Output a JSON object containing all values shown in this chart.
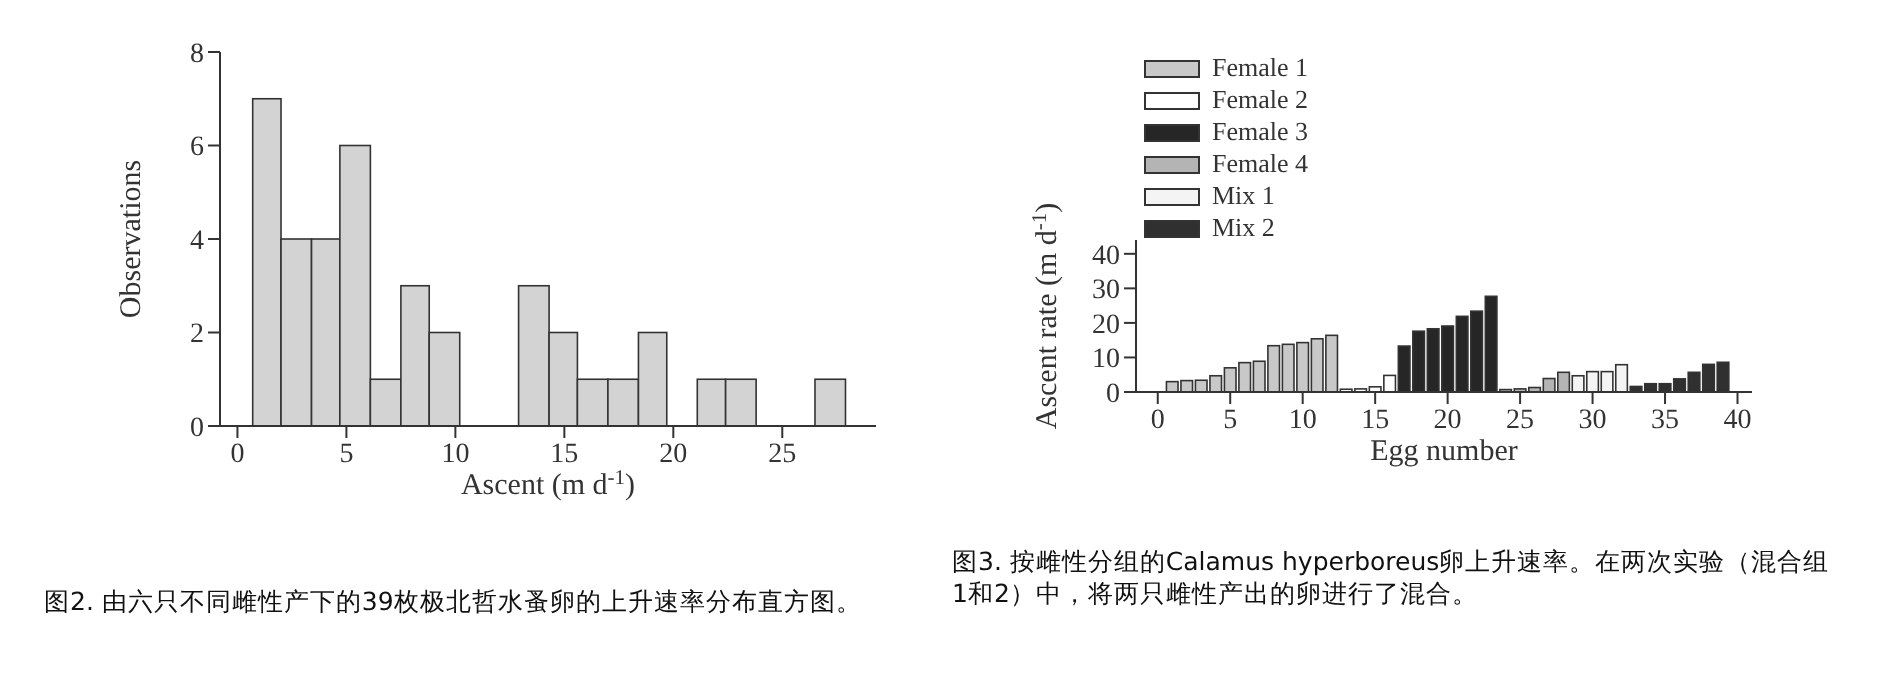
{
  "chart_data": [
    {
      "type": "histogram",
      "xlabel": "Ascent (m d$^{-1}$)",
      "ylabel": "Observations",
      "bins": [
        0.7,
        2.0,
        3.4,
        4.7,
        6.1,
        7.5,
        8.8,
        10.2,
        12.9,
        14.3,
        15.6,
        17.0,
        18.4,
        19.7,
        21.1,
        22.4,
        23.8,
        26.5,
        27.9
      ],
      "values": [
        7,
        4,
        4,
        6,
        1,
        3,
        2,
        0,
        3,
        2,
        1,
        1,
        2,
        0,
        1,
        1,
        0,
        1
      ],
      "color": "#d3d3d3",
      "xlim": [
        -0.8,
        29.3
      ],
      "xticks": [
        0,
        5,
        10,
        15,
        20,
        25
      ],
      "ylim": [
        0,
        8
      ],
      "yticks": [
        0,
        2,
        4,
        6,
        8
      ],
      "grid": false,
      "legend": false,
      "annotations": [
        "图2. 由六只不同雌性产下的39枚极北哲水蚤卵的上升速率分布直方图。"
      ]
    },
    {
      "type": "bar",
      "xlabel": "Egg number",
      "ylabel": "Ascent rate (m d$^{-1}$)",
      "xlim": [
        -1.5,
        41
      ],
      "xticks": [
        0,
        5,
        10,
        15,
        20,
        25,
        30,
        35,
        40
      ],
      "ylim": [
        0,
        44
      ],
      "yticks": [
        0,
        10,
        20,
        30,
        40
      ],
      "grid": false,
      "legend": "top left",
      "series": [
        {
          "name": "Female 1",
          "color": "#c8c8c8",
          "x": [
            1,
            2,
            3,
            4,
            5,
            6,
            7,
            8,
            9,
            10,
            11,
            12
          ],
          "values": [
            3.0,
            3.3,
            3.4,
            4.7,
            7.0,
            8.5,
            8.9,
            13.4,
            13.8,
            14.3,
            15.4,
            16.4
          ]
        },
        {
          "name": "Female 2",
          "color": "#ffffff",
          "x": [
            13,
            14,
            15,
            16
          ],
          "values": [
            0.8,
            0.9,
            1.5,
            4.8
          ]
        },
        {
          "name": "Female 3",
          "color": "#262626",
          "x": [
            17,
            18,
            19,
            20,
            21,
            22,
            23
          ],
          "values": [
            13.3,
            17.6,
            18.3,
            19.1,
            21.9,
            23.4,
            27.7
          ]
        },
        {
          "name": "Female 4",
          "color": "#b4b4b4",
          "x": [
            24,
            25,
            26,
            27,
            28
          ],
          "values": [
            0.7,
            0.9,
            1.3,
            3.9,
            5.7
          ]
        },
        {
          "name": "Mix 1",
          "color": "#f4f4f4",
          "x": [
            29,
            30,
            31,
            32
          ],
          "values": [
            4.7,
            5.9,
            5.9,
            7.9
          ]
        },
        {
          "name": "Mix 2",
          "color": "#303030",
          "x": [
            33,
            34,
            35,
            36,
            37,
            38,
            39
          ],
          "values": [
            1.6,
            2.4,
            2.4,
            3.8,
            5.7,
            8.0,
            8.6
          ]
        }
      ],
      "annotations": [
        "图3. 按雌性分组的Calamus hyperboreus卵上升速率。在两次实验（混合组1和2）中，将两只雌性产出的卵进行了混合。"
      ]
    }
  ]
}
